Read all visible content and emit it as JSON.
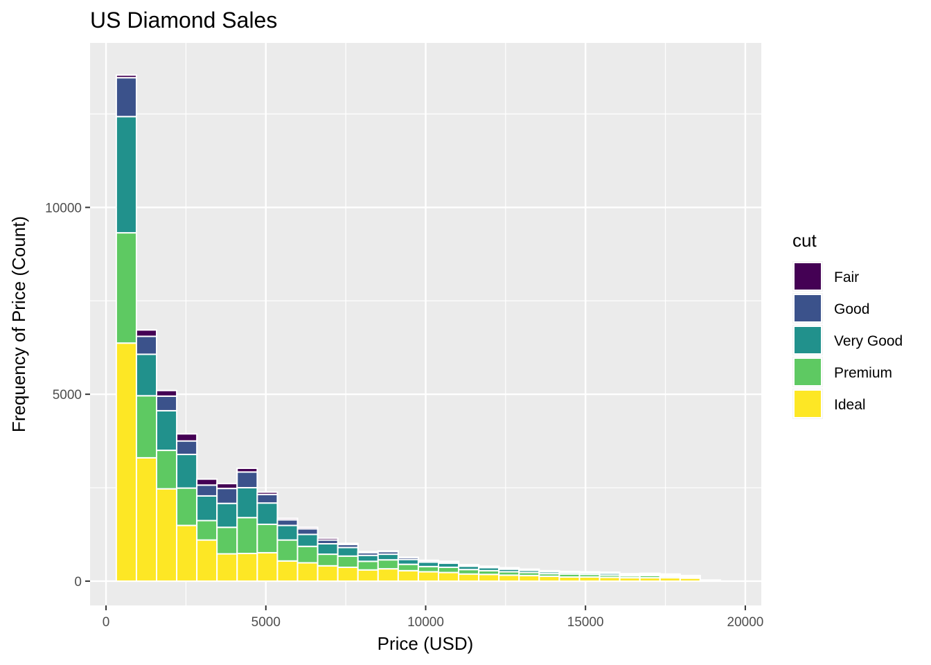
{
  "chart_data": {
    "type": "bar",
    "subtype": "stacked-histogram",
    "title": "US Diamond Sales",
    "xlabel": "Price (USD)",
    "ylabel": "Frequency of Price (Count)",
    "xlim": [
      -500,
      20500
    ],
    "ylim": [
      -650,
      14400
    ],
    "x_ticks": [
      0,
      5000,
      10000,
      15000,
      20000
    ],
    "y_ticks": [
      0,
      5000,
      10000
    ],
    "bin_width": 630,
    "x": [
      636,
      1266,
      1896,
      2526,
      3156,
      3786,
      4416,
      5046,
      5676,
      6306,
      6936,
      7566,
      8196,
      8826,
      9456,
      10086,
      10716,
      11346,
      11976,
      12606,
      13236,
      13866,
      14496,
      15126,
      15756,
      16386,
      17016,
      17646,
      18276,
      18906
    ],
    "series": [
      {
        "name": "Ideal",
        "color": "#FDE725",
        "values": [
          6370,
          3300,
          2470,
          1490,
          1100,
          730,
          740,
          760,
          540,
          490,
          410,
          370,
          300,
          330,
          280,
          250,
          230,
          190,
          180,
          160,
          150,
          130,
          110,
          110,
          100,
          90,
          90,
          90,
          80,
          10
        ]
      },
      {
        "name": "Premium",
        "color": "#5EC962",
        "values": [
          2950,
          1660,
          1030,
          1000,
          520,
          710,
          960,
          760,
          560,
          440,
          310,
          300,
          230,
          240,
          170,
          140,
          140,
          120,
          100,
          90,
          80,
          70,
          80,
          70,
          60,
          50,
          60,
          40,
          30,
          5
        ]
      },
      {
        "name": "Very Good",
        "color": "#21918C",
        "values": [
          3110,
          1110,
          1060,
          900,
          660,
          640,
          800,
          570,
          390,
          320,
          280,
          230,
          160,
          150,
          130,
          120,
          110,
          90,
          80,
          70,
          60,
          50,
          40,
          40,
          50,
          30,
          30,
          30,
          20,
          5
        ]
      },
      {
        "name": "Good",
        "color": "#3B528B",
        "values": [
          1040,
          480,
          390,
          360,
          290,
          400,
          420,
          230,
          150,
          150,
          100,
          80,
          70,
          70,
          50,
          40,
          40,
          30,
          30,
          30,
          20,
          20,
          20,
          20,
          20,
          20,
          20,
          20,
          10,
          5
        ]
      },
      {
        "name": "Fair",
        "color": "#440154",
        "values": [
          70,
          170,
          150,
          190,
          160,
          130,
          100,
          60,
          40,
          40,
          50,
          30,
          30,
          20,
          10,
          10,
          10,
          10,
          10,
          10,
          10,
          10,
          10,
          10,
          10,
          10,
          10,
          10,
          10,
          5
        ]
      }
    ],
    "legend": {
      "title": "cut",
      "placement": "right",
      "entries": [
        "Fair",
        "Good",
        "Very Good",
        "Premium",
        "Ideal"
      ],
      "colors": [
        "#440154",
        "#3B528B",
        "#21918C",
        "#5EC962",
        "#FDE725"
      ]
    },
    "grid": true,
    "panel_background": "#EBEBEB",
    "bar_outline": "#FFFFFF"
  }
}
